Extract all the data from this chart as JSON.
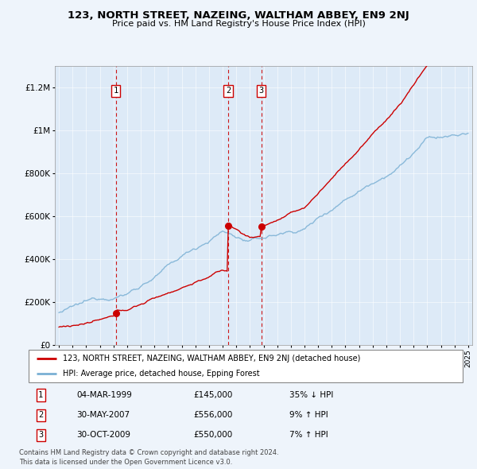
{
  "title": "123, NORTH STREET, NAZEING, WALTHAM ABBEY, EN9 2NJ",
  "subtitle": "Price paid vs. HM Land Registry's House Price Index (HPI)",
  "legend_line1": "123, NORTH STREET, NAZEING, WALTHAM ABBEY, EN9 2NJ (detached house)",
  "legend_line2": "HPI: Average price, detached house, Epping Forest",
  "footer1": "Contains HM Land Registry data © Crown copyright and database right 2024.",
  "footer2": "This data is licensed under the Open Government Licence v3.0.",
  "transactions": [
    {
      "num": 1,
      "date": "04-MAR-1999",
      "price": "£145,000",
      "hpi": "35% ↓ HPI",
      "year": 1999.17,
      "price_val": 145000
    },
    {
      "num": 2,
      "date": "30-MAY-2007",
      "price": "£556,000",
      "hpi": "9% ↑ HPI",
      "year": 2007.41,
      "price_val": 556000
    },
    {
      "num": 3,
      "date": "30-OCT-2009",
      "price": "£550,000",
      "hpi": "7% ↑ HPI",
      "year": 2009.83,
      "price_val": 550000
    }
  ],
  "property_color": "#cc0000",
  "hpi_color": "#7ab0d4",
  "background_color": "#eef4fb",
  "plot_bg": "#ddeaf7",
  "ylim": [
    0,
    1300000
  ],
  "xlim_start": 1994.7,
  "xlim_end": 2025.3,
  "yticks": [
    0,
    200000,
    400000,
    600000,
    800000,
    1000000,
    1200000
  ],
  "ytick_labels": [
    "£0",
    "£200K",
    "£400K",
    "£600K",
    "£800K",
    "£1M",
    "£1.2M"
  ]
}
